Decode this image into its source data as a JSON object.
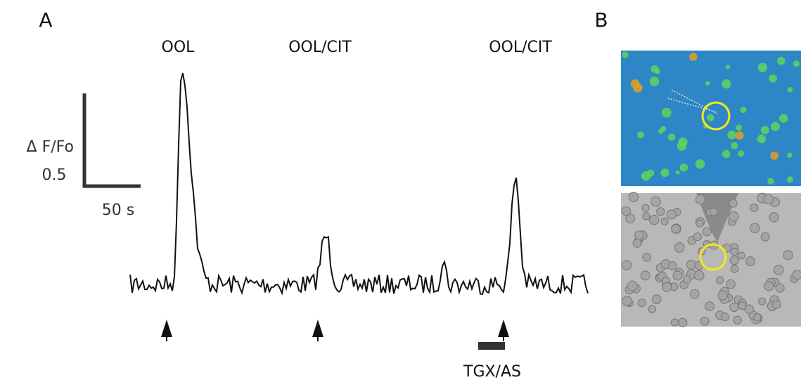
{
  "figure": {
    "panel_a": {
      "label": "A",
      "stimuli": [
        "OOL",
        "OOL/CIT",
        "OOL/CIT"
      ],
      "scale_bar": {
        "y_label": "Δ F/Fo",
        "y_value": "0.5",
        "x_label": "50 s"
      },
      "treatment": "TGX/AS"
    },
    "panel_b": {
      "label": "B"
    }
  }
}
